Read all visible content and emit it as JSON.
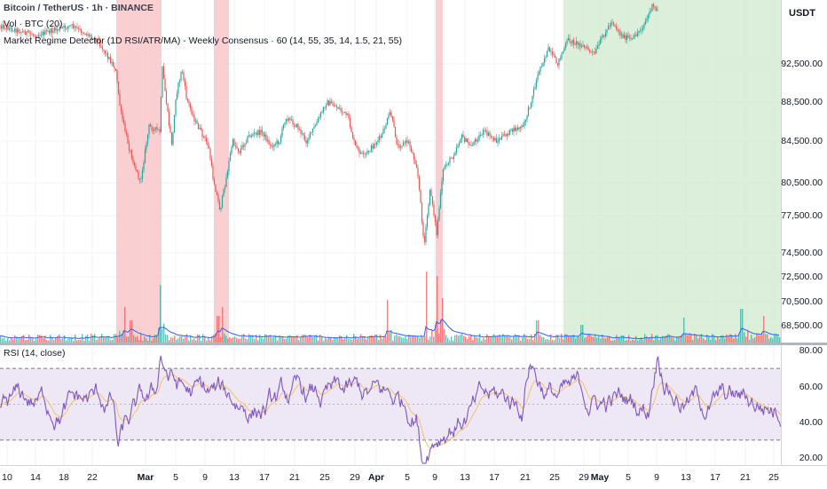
{
  "legend": {
    "title": "Bitcoin / TetherUS · 1h · BINANCE",
    "volume": "Vol · BTC (20)",
    "regime": "Market Regime Detector (1D RSI/ATR/MA) - Weekly Consensus · 60 (14, 55, 35, 14, 1.5, 21, 55)",
    "rsi": "RSI (14, close)"
  },
  "currency": "USDT",
  "price_axis": {
    "labels": [
      "92,500.00",
      "88,500.00",
      "84,500.00",
      "80,500.00",
      "77,500.00",
      "74,500.00",
      "72,500.00",
      "70,500.00",
      "68,500.00"
    ]
  },
  "rsi_axis": {
    "labels": [
      "80.00",
      "60.00",
      "40.00",
      "20.00"
    ]
  },
  "time_axis": {
    "labels": [
      {
        "text": "10",
        "bold": false
      },
      {
        "text": "14",
        "bold": false
      },
      {
        "text": "18",
        "bold": false
      },
      {
        "text": "22",
        "bold": false
      },
      {
        "text": "Mar",
        "bold": true
      },
      {
        "text": "5",
        "bold": false
      },
      {
        "text": "9",
        "bold": false
      },
      {
        "text": "13",
        "bold": false
      },
      {
        "text": "17",
        "bold": false
      },
      {
        "text": "21",
        "bold": false
      },
      {
        "text": "25",
        "bold": false
      },
      {
        "text": "29",
        "bold": false
      },
      {
        "text": "Apr",
        "bold": true
      },
      {
        "text": "5",
        "bold": false
      },
      {
        "text": "9",
        "bold": false
      },
      {
        "text": "13",
        "bold": false
      },
      {
        "text": "17",
        "bold": false
      },
      {
        "text": "21",
        "bold": false
      },
      {
        "text": "25",
        "bold": false
      },
      {
        "text": "29",
        "bold": false
      },
      {
        "text": "May",
        "bold": true
      },
      {
        "text": "5",
        "bold": false
      },
      {
        "text": "9",
        "bold": false
      },
      {
        "text": "13",
        "bold": false
      },
      {
        "text": "17",
        "bold": false
      },
      {
        "text": "21",
        "bold": false
      },
      {
        "text": "25",
        "bold": false
      }
    ]
  },
  "colors": {
    "up": "#26a69a",
    "down": "#ef5350",
    "bear_regime": "#f8bfc3",
    "bull_regime": "#cfe9cf",
    "rsi_line": "#7e57c2",
    "rsi_ma": "#f6c16a",
    "rsi_band": "#ede7f6",
    "volume_ma": "#2962ff",
    "grid": "#f0f3fa"
  },
  "chart_data": {
    "type": "candlestick",
    "symbol": "BTCUSDT",
    "timeframe": "1h",
    "price_range": [
      68500,
      96000
    ],
    "price_path": [
      [
        0,
        96500
      ],
      [
        40,
        95500
      ],
      [
        80,
        96500
      ],
      [
        110,
        95000
      ],
      [
        130,
        92000
      ],
      [
        136,
        87500
      ],
      [
        145,
        84000
      ],
      [
        158,
        80500
      ],
      [
        168,
        86000
      ],
      [
        180,
        85500
      ],
      [
        183,
        92000
      ],
      [
        190,
        86500
      ],
      [
        194,
        84000
      ],
      [
        198,
        89000
      ],
      [
        205,
        92000
      ],
      [
        210,
        89000
      ],
      [
        220,
        86500
      ],
      [
        235,
        84000
      ],
      [
        240,
        81000
      ],
      [
        248,
        78000
      ],
      [
        255,
        81000
      ],
      [
        262,
        84500
      ],
      [
        270,
        83500
      ],
      [
        280,
        85000
      ],
      [
        295,
        85500
      ],
      [
        305,
        84000
      ],
      [
        315,
        84500
      ],
      [
        322,
        87000
      ],
      [
        335,
        86000
      ],
      [
        345,
        84500
      ],
      [
        355,
        86000
      ],
      [
        368,
        88500
      ],
      [
        380,
        88000
      ],
      [
        392,
        87000
      ],
      [
        400,
        84000
      ],
      [
        410,
        83000
      ],
      [
        420,
        84000
      ],
      [
        430,
        85000
      ],
      [
        440,
        87500
      ],
      [
        448,
        84000
      ],
      [
        460,
        84500
      ],
      [
        470,
        82000
      ],
      [
        478,
        75000
      ],
      [
        485,
        80000
      ],
      [
        492,
        76000
      ],
      [
        500,
        82000
      ],
      [
        510,
        83000
      ],
      [
        520,
        85000
      ],
      [
        530,
        84000
      ],
      [
        545,
        85500
      ],
      [
        560,
        84500
      ],
      [
        575,
        85500
      ],
      [
        590,
        86000
      ],
      [
        598,
        88500
      ],
      [
        608,
        92000
      ],
      [
        618,
        94000
      ],
      [
        628,
        92500
      ],
      [
        640,
        95000
      ],
      [
        655,
        94500
      ],
      [
        670,
        93500
      ],
      [
        680,
        95500
      ],
      [
        690,
        97000
      ],
      [
        700,
        95500
      ],
      [
        712,
        95000
      ],
      [
        725,
        96500
      ],
      [
        735,
        98500
      ],
      [
        742,
        98000
      ]
    ],
    "regimes": [
      {
        "type": "bearish",
        "from": "Feb 24",
        "to": "Mar 2"
      },
      {
        "type": "bearish",
        "from": "Mar 10",
        "to": "Mar 12"
      },
      {
        "type": "bearish",
        "from": "Apr 7",
        "to": "Apr 8"
      },
      {
        "type": "bullish",
        "from": "Apr 26",
        "to": "May 26"
      }
    ],
    "rsi": {
      "range": [
        15,
        85
      ],
      "overbought": 70,
      "oversold": 30,
      "mid": 50
    }
  }
}
